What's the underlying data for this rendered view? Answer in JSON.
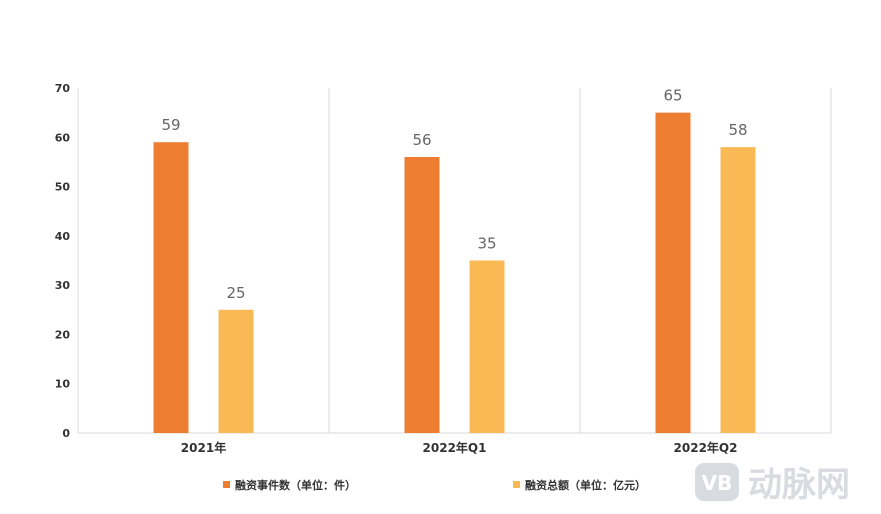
{
  "chart_data": {
    "type": "bar",
    "categories": [
      "2021年",
      "2022年Q1",
      "2022年Q2"
    ],
    "series": [
      {
        "name": "融资事件数（单位：件）",
        "values": [
          59,
          56,
          65
        ],
        "color": "#ED7D31"
      },
      {
        "name": "融资总额（单位：亿元）",
        "values": [
          25,
          35,
          58
        ],
        "color": "#F9B955"
      }
    ],
    "yticks": [
      0,
      10,
      20,
      30,
      40,
      50,
      60,
      70
    ],
    "ylim": [
      0,
      70
    ],
    "title": "",
    "xlabel": "",
    "ylabel": "",
    "grid": "vertical category separators",
    "legend_position": "bottom"
  },
  "watermark": {
    "text": "动脉网",
    "logo_text": "VB",
    "icon": "vb-logo-icon"
  }
}
